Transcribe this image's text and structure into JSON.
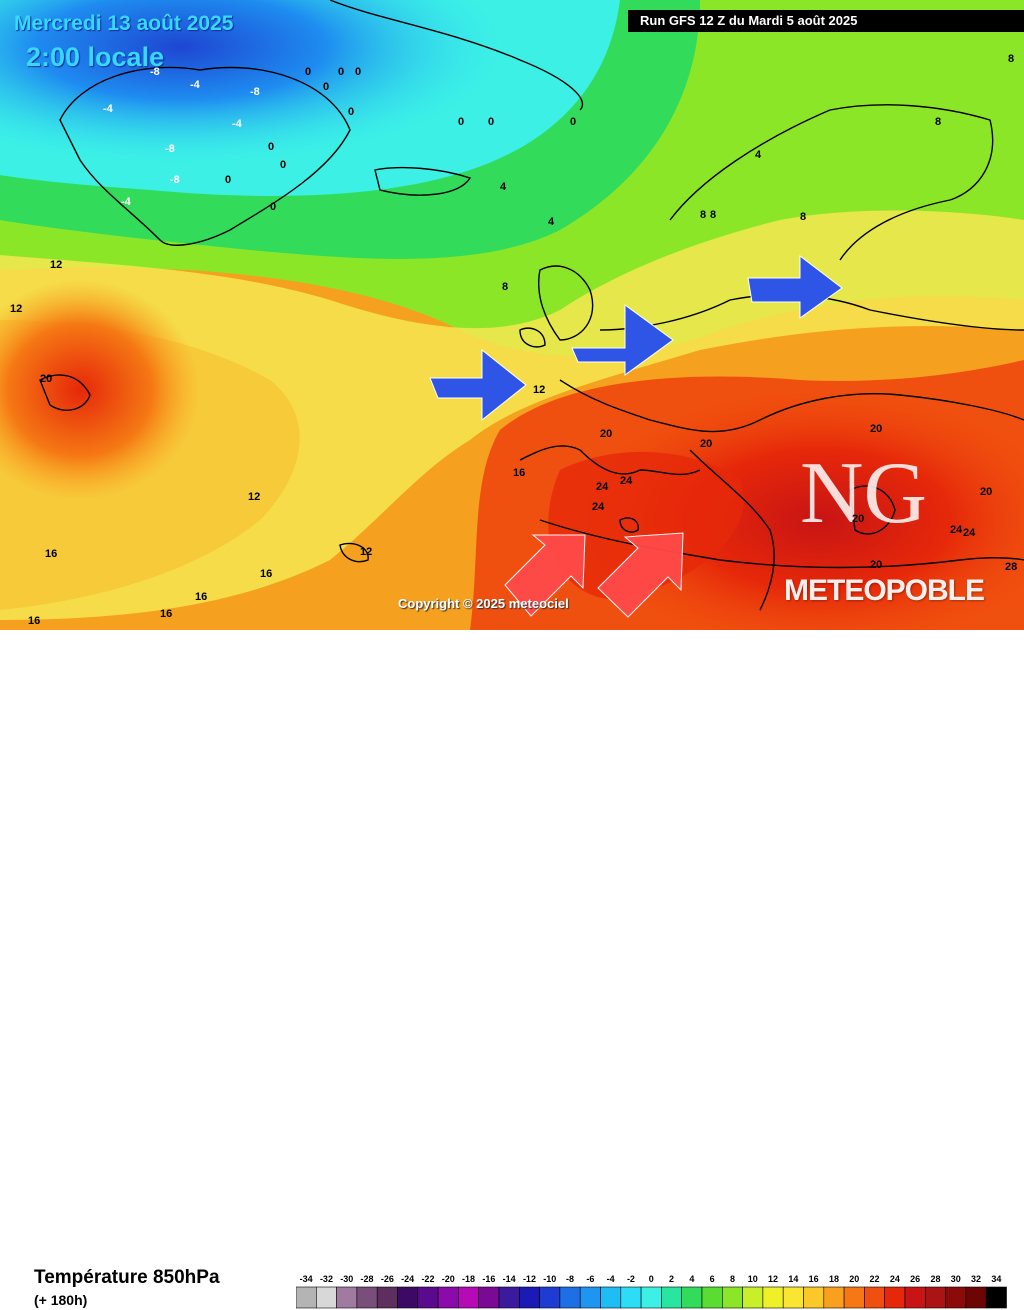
{
  "header": {
    "date": "Mercredi 13 août 2025",
    "time": "2:00 locale",
    "run": "Run GFS 12 Z du Mardi 5 août 2025"
  },
  "map": {
    "copyright": "Copyright © 2025 meteociel",
    "watermark_letters": "NG",
    "watermark_brand": "METEOPOBLE",
    "isotherm_labels": [
      {
        "text": "-8"
      },
      {
        "text": "-4"
      },
      {
        "text": "-8"
      },
      {
        "text": "-4"
      },
      {
        "text": "-8"
      },
      {
        "text": "-4"
      },
      {
        "text": "-8"
      },
      {
        "text": "-4"
      },
      {
        "text": "0"
      },
      {
        "text": "0"
      },
      {
        "text": "0"
      },
      {
        "text": "0"
      },
      {
        "text": "0"
      },
      {
        "text": "0"
      },
      {
        "text": "0"
      },
      {
        "text": "0"
      },
      {
        "text": "0"
      },
      {
        "text": "0"
      },
      {
        "text": "0"
      },
      {
        "text": "0"
      },
      {
        "text": "4"
      },
      {
        "text": "4"
      },
      {
        "text": "4"
      },
      {
        "text": "8"
      },
      {
        "text": "8"
      },
      {
        "text": "8"
      },
      {
        "text": "8"
      },
      {
        "text": "8"
      },
      {
        "text": "8"
      },
      {
        "text": "12"
      },
      {
        "text": "12"
      },
      {
        "text": "12"
      },
      {
        "text": "12"
      },
      {
        "text": "12"
      },
      {
        "text": "16"
      },
      {
        "text": "16"
      },
      {
        "text": "16"
      },
      {
        "text": "16"
      },
      {
        "text": "16"
      },
      {
        "text": "16"
      },
      {
        "text": "20"
      },
      {
        "text": "20"
      },
      {
        "text": "20"
      },
      {
        "text": "20"
      },
      {
        "text": "20"
      },
      {
        "text": "20"
      },
      {
        "text": "20"
      },
      {
        "text": "24"
      },
      {
        "text": "24"
      },
      {
        "text": "24"
      },
      {
        "text": "24"
      },
      {
        "text": "24"
      },
      {
        "text": "28"
      }
    ],
    "arrows": [
      {
        "color": "#2f55e6",
        "meaning": "wind-flow"
      },
      {
        "color": "#2f55e6",
        "meaning": "wind-flow"
      },
      {
        "color": "#2f55e6",
        "meaning": "wind-flow"
      },
      {
        "color": "#ff4a4a",
        "meaning": "heat-advection"
      },
      {
        "color": "#ff4a4a",
        "meaning": "heat-advection"
      }
    ]
  },
  "legend": {
    "title": "Température 850hPa",
    "subtitle": "(+ 180h)",
    "scale": [
      {
        "label": "-34",
        "color": "#b4b4b4"
      },
      {
        "label": "-32",
        "color": "#d8d8d8"
      },
      {
        "label": "-30",
        "color": "#a07aa0"
      },
      {
        "label": "-28",
        "color": "#7a4e7a"
      },
      {
        "label": "-26",
        "color": "#5e2f5e"
      },
      {
        "label": "-24",
        "color": "#3c0a64"
      },
      {
        "label": "-22",
        "color": "#5a0a8c"
      },
      {
        "label": "-20",
        "color": "#8a0aaa"
      },
      {
        "label": "-18",
        "color": "#b60ab6"
      },
      {
        "label": "-16",
        "color": "#7a0a96"
      },
      {
        "label": "-14",
        "color": "#3c1aa0"
      },
      {
        "label": "-12",
        "color": "#1a1ab4"
      },
      {
        "label": "-10",
        "color": "#1e3cd2"
      },
      {
        "label": "-8",
        "color": "#1e6ee6"
      },
      {
        "label": "-6",
        "color": "#1e96f0"
      },
      {
        "label": "-4",
        "color": "#1ebef5"
      },
      {
        "label": "-2",
        "color": "#2ddcf5"
      },
      {
        "label": "0",
        "color": "#3cf0e6"
      },
      {
        "label": "2",
        "color": "#28e6a0"
      },
      {
        "label": "4",
        "color": "#32dc5a"
      },
      {
        "label": "6",
        "color": "#5adc32"
      },
      {
        "label": "8",
        "color": "#8ce628"
      },
      {
        "label": "10",
        "color": "#c8f028"
      },
      {
        "label": "12",
        "color": "#f0f028"
      },
      {
        "label": "14",
        "color": "#fae632"
      },
      {
        "label": "16",
        "color": "#fac828"
      },
      {
        "label": "18",
        "color": "#faa01e"
      },
      {
        "label": "20",
        "color": "#f57814"
      },
      {
        "label": "22",
        "color": "#f0500f"
      },
      {
        "label": "24",
        "color": "#e6280a"
      },
      {
        "label": "26",
        "color": "#c81414"
      },
      {
        "label": "28",
        "color": "#aa1414"
      },
      {
        "label": "30",
        "color": "#8c0a0a"
      },
      {
        "label": "32",
        "color": "#6e0505"
      },
      {
        "label": "34",
        "color": "#000000"
      }
    ]
  }
}
